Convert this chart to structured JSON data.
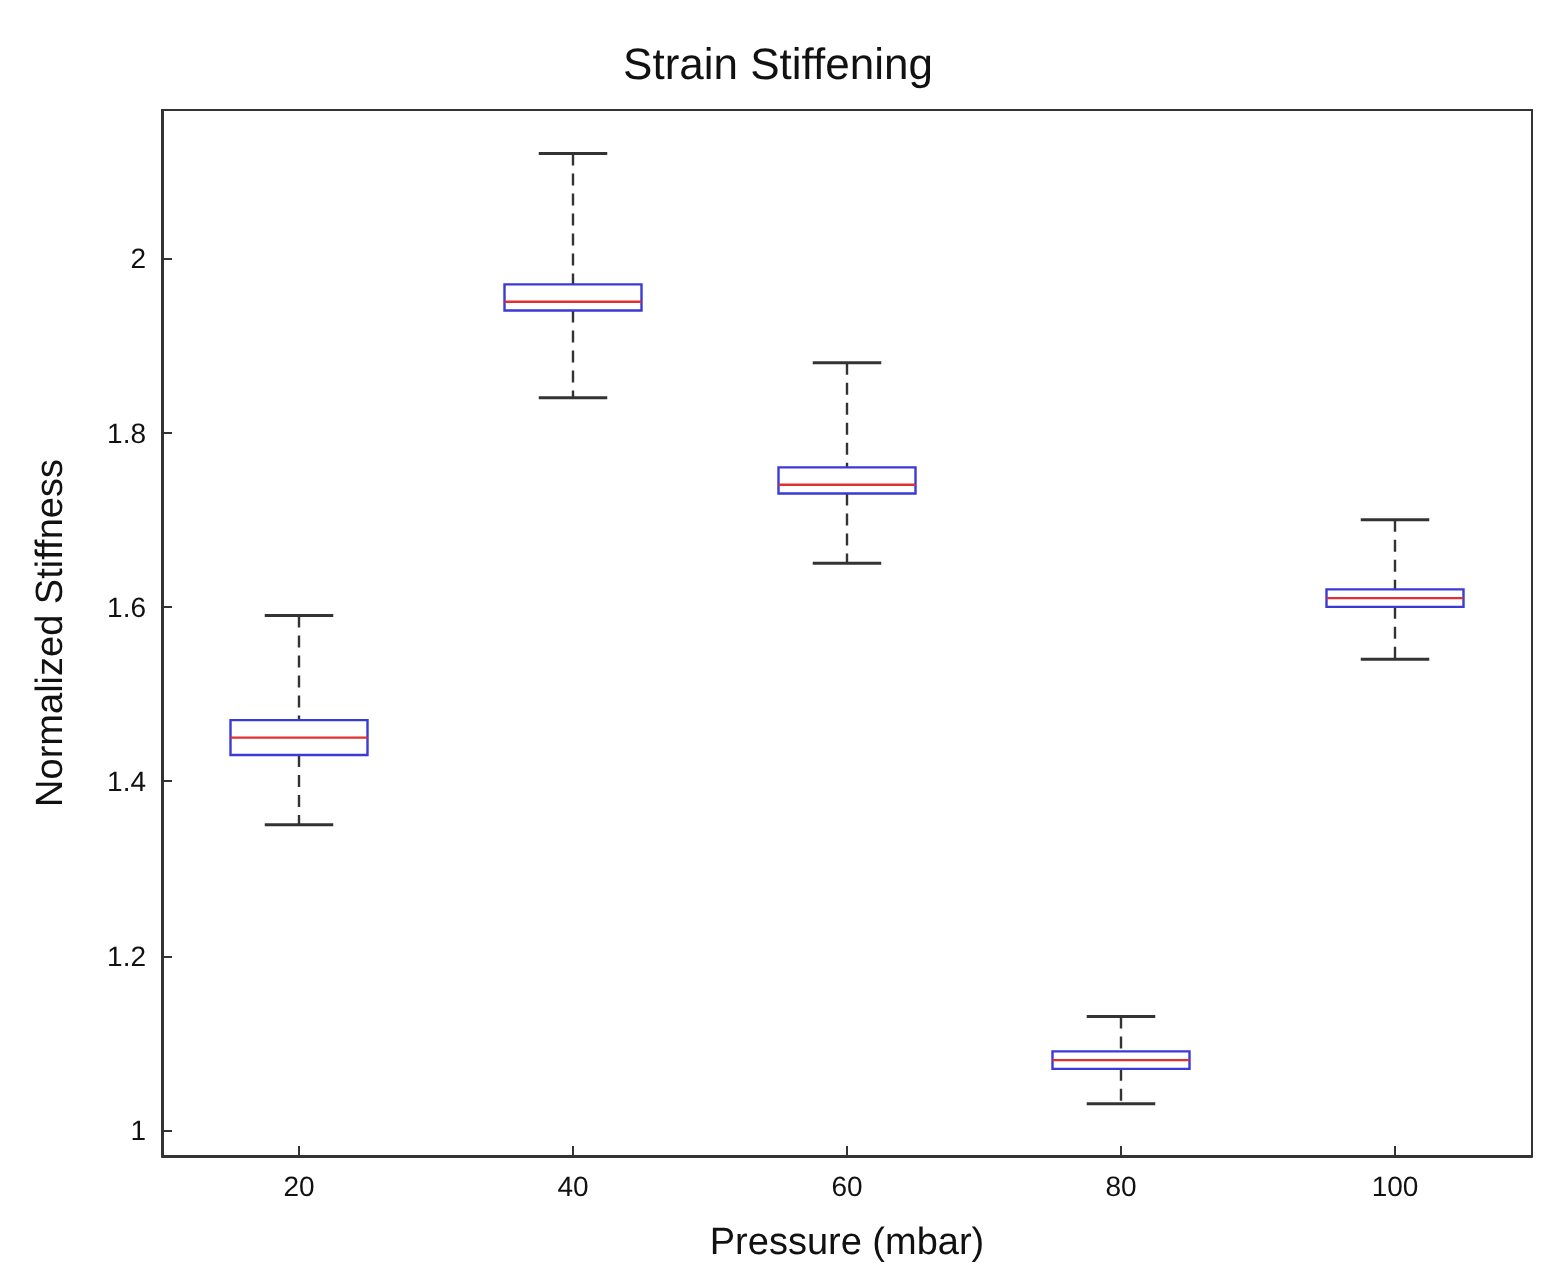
{
  "chart_data": {
    "type": "box",
    "title": "Strain Stiffening",
    "xlabel": "Pressure (mbar)",
    "ylabel": "Normalized Stiffness",
    "categories": [
      "20",
      "40",
      "60",
      "80",
      "100"
    ],
    "series": [
      {
        "color": "#3a3ad6",
        "boxes": [
          {
            "low": 1.35,
            "q1": 1.43,
            "median": 1.45,
            "q3": 1.47,
            "high": 1.59
          },
          {
            "low": 1.84,
            "q1": 1.94,
            "median": 1.95,
            "q3": 1.97,
            "high": 2.12
          },
          {
            "low": 1.65,
            "q1": 1.73,
            "median": 1.74,
            "q3": 1.76,
            "high": 1.88
          },
          {
            "low": 1.03,
            "q1": 1.07,
            "median": 1.08,
            "q3": 1.09,
            "high": 1.13
          },
          {
            "low": 1.54,
            "q1": 1.6,
            "median": 1.61,
            "q3": 1.62,
            "high": 1.7
          }
        ]
      }
    ],
    "ylim": [
      0.97,
      2.17
    ],
    "yticks": [
      1,
      1.2,
      1.4,
      1.6,
      1.8,
      2
    ],
    "grid": false
  }
}
